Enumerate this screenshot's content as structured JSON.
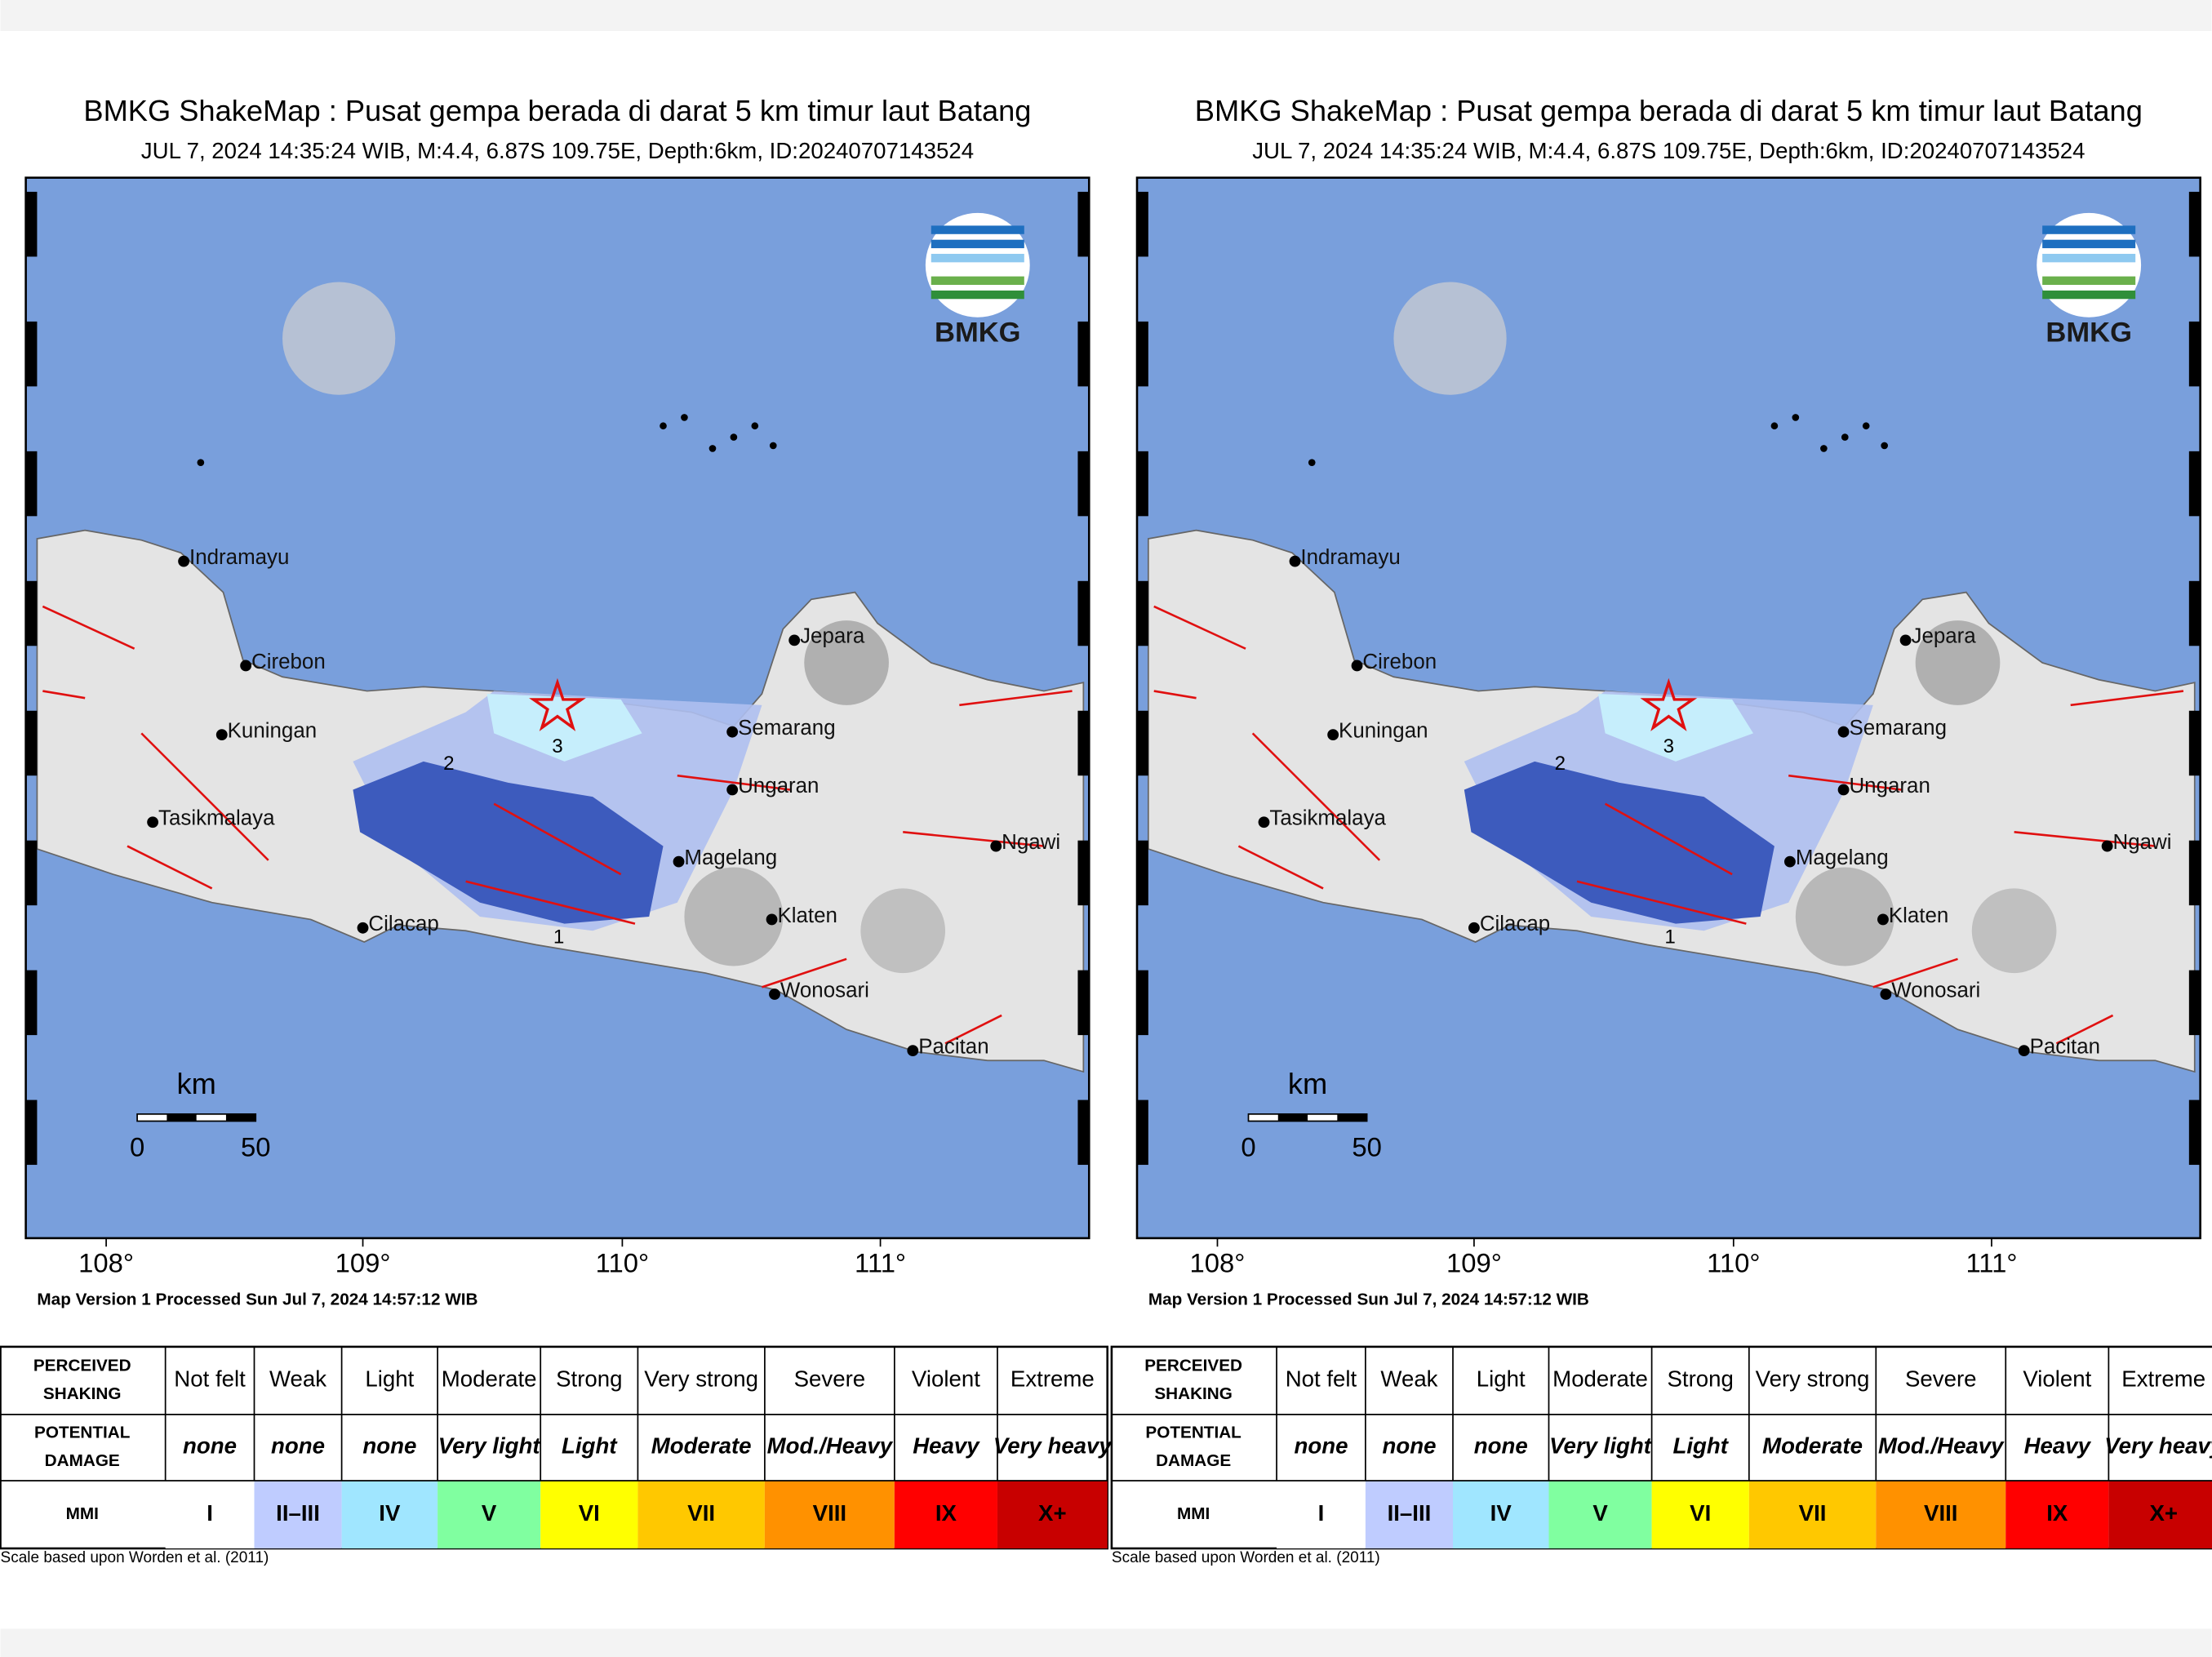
{
  "panels": [
    {
      "title": "BMKG ShakeMap : Pusat gempa berada di darat 5 km timur laut Batang",
      "subtitle": "JUL 7, 2024 14:35:24 WIB, M:4.4, 6.87S 109.75E, Depth:6km, ID:20240707143524",
      "logo": "BMKG",
      "cities": [
        "Indramayu",
        "Cirebon",
        "Kuningan",
        "Tasikmalaya",
        "Cilacap",
        "Semarang",
        "Jepara",
        "Ungaran",
        "Magelang",
        "Klaten",
        "Wonosari",
        "Ngawi",
        "Pacitan"
      ],
      "contours": [
        "3",
        "2",
        "1"
      ],
      "scale": {
        "unit": "km",
        "labels": [
          "0",
          "50"
        ]
      },
      "x_labels": [
        "108°",
        "109°",
        "110°",
        "111°"
      ],
      "footer": "Map Version 1 Processed Sun Jul  7, 2024 14:57:12 WIB",
      "legend": {
        "headers": [
          [
            "PERCEIVED",
            "SHAKING"
          ],
          [
            "POTENTIAL",
            "DAMAGE"
          ],
          [
            "MMI"
          ]
        ],
        "rows": [
          [
            "Not felt",
            "Weak",
            "Light",
            "Moderate",
            "Strong",
            "Very strong",
            "Severe",
            "Violent",
            "Extreme"
          ],
          [
            "none",
            "none",
            "none",
            "Very light",
            "Light",
            "Moderate",
            "Mod./Heavy",
            "Heavy",
            "Very heavy"
          ],
          [
            "I",
            "II–III",
            "IV",
            "V",
            "VI",
            "VII",
            "VIII",
            "IX",
            "X+"
          ]
        ],
        "note": "Scale based upon Worden et al. (2011)"
      }
    },
    {
      "title": "BMKG ShakeMap : Pusat gempa berada di darat 5 km timur laut Batang",
      "subtitle": "JUL 7, 2024 14:35:24 WIB, M:4.4, 6.87S 109.75E, Depth:6km, ID:20240707143524",
      "logo": "BMKG",
      "cities": [
        "Indramayu",
        "Cirebon",
        "Kuningan",
        "Tasikmalaya",
        "Cilacap",
        "Semarang",
        "Jepara",
        "Ungaran",
        "Magelang",
        "Klaten",
        "Wonosari",
        "Ngawi",
        "Pacitan"
      ],
      "contours": [
        "3",
        "2",
        "1"
      ],
      "scale": {
        "unit": "km",
        "labels": [
          "0",
          "50"
        ]
      },
      "x_labels": [
        "108°",
        "109°",
        "110°",
        "111°"
      ],
      "footer": "Map Version 1 Processed Sun Jul  7, 2024 14:57:12 WIB",
      "legend": {
        "headers": [
          [
            "PERCEIVED",
            "SHAKING"
          ],
          [
            "POTENTIAL",
            "DAMAGE"
          ],
          [
            "MMI"
          ]
        ],
        "rows": [
          [
            "Not felt",
            "Weak",
            "Light",
            "Moderate",
            "Strong",
            "Very strong",
            "Severe",
            "Violent",
            "Extreme"
          ],
          [
            "none",
            "none",
            "none",
            "Very light",
            "Light",
            "Moderate",
            "Mod./Heavy",
            "Heavy",
            "Very heavy"
          ],
          [
            "I",
            "II–III",
            "IV",
            "V",
            "VI",
            "VII",
            "VIII",
            "IX",
            "X+"
          ]
        ],
        "note": "Scale based upon Worden et al. (2011)"
      }
    }
  ]
}
